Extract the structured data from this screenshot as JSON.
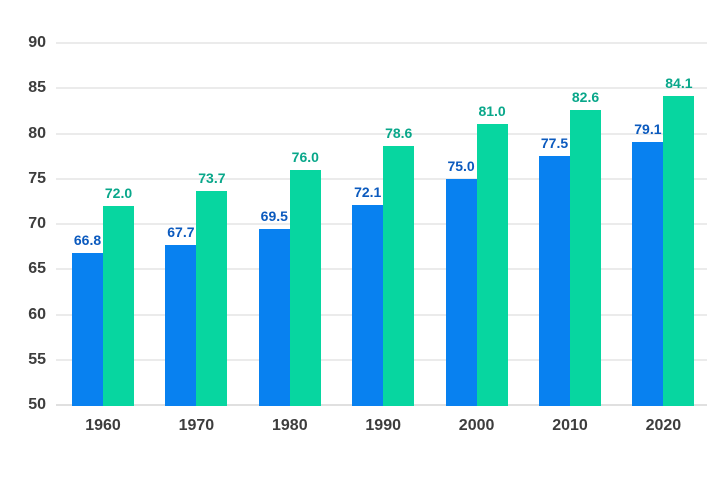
{
  "chart_data": {
    "type": "bar",
    "title": "",
    "xlabel": "",
    "ylabel": "",
    "categories": [
      "1960",
      "1970",
      "1980",
      "1990",
      "2000",
      "2010",
      "2020"
    ],
    "series": [
      {
        "key": "blue",
        "color": "#0881f0",
        "label_color": "#0b5abe",
        "values": [
          66.8,
          67.7,
          69.5,
          72.1,
          75.0,
          77.5,
          79.1
        ]
      },
      {
        "key": "green",
        "color": "#07d6a0",
        "label_color": "#09a78a",
        "values": [
          72.0,
          73.7,
          76.0,
          78.6,
          81.0,
          82.6,
          84.1
        ]
      }
    ],
    "value_label_decimals": 1,
    "y_ticks": [
      90,
      85,
      80,
      75,
      70,
      65,
      60,
      55,
      50
    ],
    "ylim": [
      50,
      90
    ],
    "grid": true,
    "legend_position": "none",
    "tick_label_color": "#3d3d3d",
    "gridline_color": "#ebebeb",
    "background_color": "#ffffff"
  }
}
